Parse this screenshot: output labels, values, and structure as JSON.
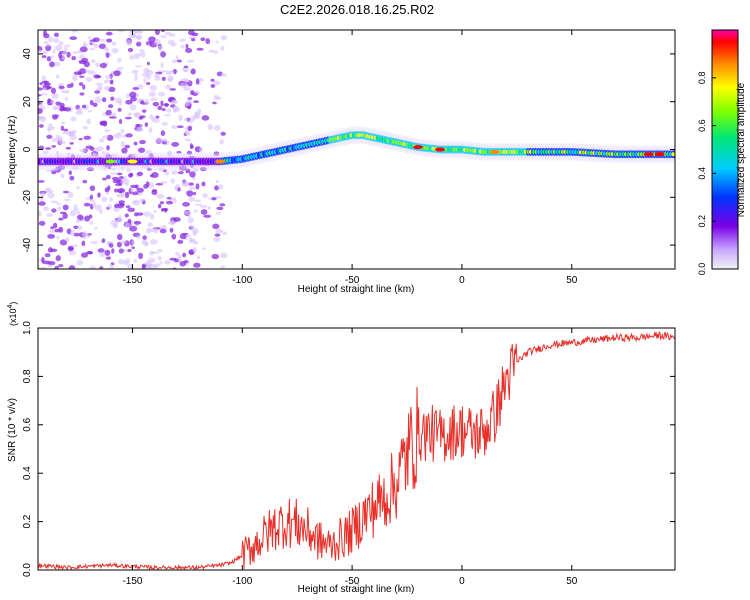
{
  "figure_title": "C2E2.2026.018.16.25.R02",
  "chart_data": [
    {
      "type": "heatmap",
      "title": "C2E2.2026.018.16.25.R02",
      "xlabel": "Height of straight line (km)",
      "ylabel": "Frequency (Hz)",
      "xlim": [
        -193,
        97
      ],
      "ylim": [
        -50,
        50
      ],
      "x_ticks": [
        -150,
        -100,
        -50,
        0,
        50
      ],
      "y_ticks": [
        -40,
        -20,
        0,
        20,
        40
      ],
      "x_tick_labels": [
        "-150",
        "-100",
        "-50",
        "0",
        "50"
      ],
      "y_tick_labels": [
        "-40",
        "-20",
        "0",
        "20",
        "40"
      ],
      "ridge": {
        "description": "dominant frequency ridge",
        "x": [
          -193,
          -160,
          -130,
          -110,
          -100,
          -90,
          -80,
          -70,
          -60,
          -50,
          -45,
          -40,
          -30,
          -20,
          -10,
          0,
          10,
          30,
          50,
          70,
          97
        ],
        "y": [
          -5,
          -5,
          -5,
          -5,
          -4,
          -2,
          0,
          2,
          4,
          6,
          6,
          5,
          3,
          1,
          0,
          0,
          -1,
          -1,
          -1,
          -2,
          -2
        ]
      },
      "colorbar": {
        "label": "Normalized spectral amplitude",
        "range": [
          0,
          1
        ],
        "ticks": [
          0.0,
          0.2,
          0.4,
          0.6,
          0.8
        ],
        "tick_labels": [
          "0.0",
          "0.2",
          "0.4",
          "0.6",
          "0.8"
        ]
      }
    },
    {
      "type": "line",
      "xlabel": "Height of straight line (km)",
      "ylabel": "SNR (10 * v/v)",
      "y_scale_label": "(x10",
      "y_scale_exponent": "4",
      "xlim": [
        -193,
        97
      ],
      "ylim": [
        0,
        1.0
      ],
      "x_ticks": [
        -150,
        -100,
        -50,
        0,
        50
      ],
      "y_ticks": [
        0.0,
        0.2,
        0.4,
        0.6,
        0.8,
        1.0
      ],
      "x_tick_labels": [
        "-150",
        "-100",
        "-50",
        "0",
        "50"
      ],
      "y_tick_labels": [
        "0.0",
        "0.2",
        "0.4",
        "0.6",
        "0.8",
        "1.0"
      ],
      "series": [
        {
          "name": "SNR",
          "color": "#e8302a",
          "x": [
            -193,
            -180,
            -160,
            -140,
            -120,
            -110,
            -105,
            -100,
            -95,
            -90,
            -85,
            -80,
            -75,
            -70,
            -65,
            -60,
            -55,
            -50,
            -45,
            -40,
            -35,
            -30,
            -25,
            -20,
            -15,
            -10,
            -5,
            0,
            5,
            10,
            15,
            20,
            25,
            30,
            40,
            50,
            60,
            70,
            80,
            90,
            97
          ],
          "y": [
            0.02,
            0.01,
            0.02,
            0.01,
            0.01,
            0.02,
            0.03,
            0.06,
            0.1,
            0.14,
            0.18,
            0.2,
            0.19,
            0.16,
            0.12,
            0.1,
            0.13,
            0.16,
            0.22,
            0.26,
            0.3,
            0.36,
            0.48,
            0.56,
            0.57,
            0.55,
            0.57,
            0.58,
            0.56,
            0.57,
            0.64,
            0.78,
            0.86,
            0.9,
            0.93,
            0.94,
            0.95,
            0.96,
            0.96,
            0.97,
            0.96
          ]
        }
      ]
    }
  ]
}
